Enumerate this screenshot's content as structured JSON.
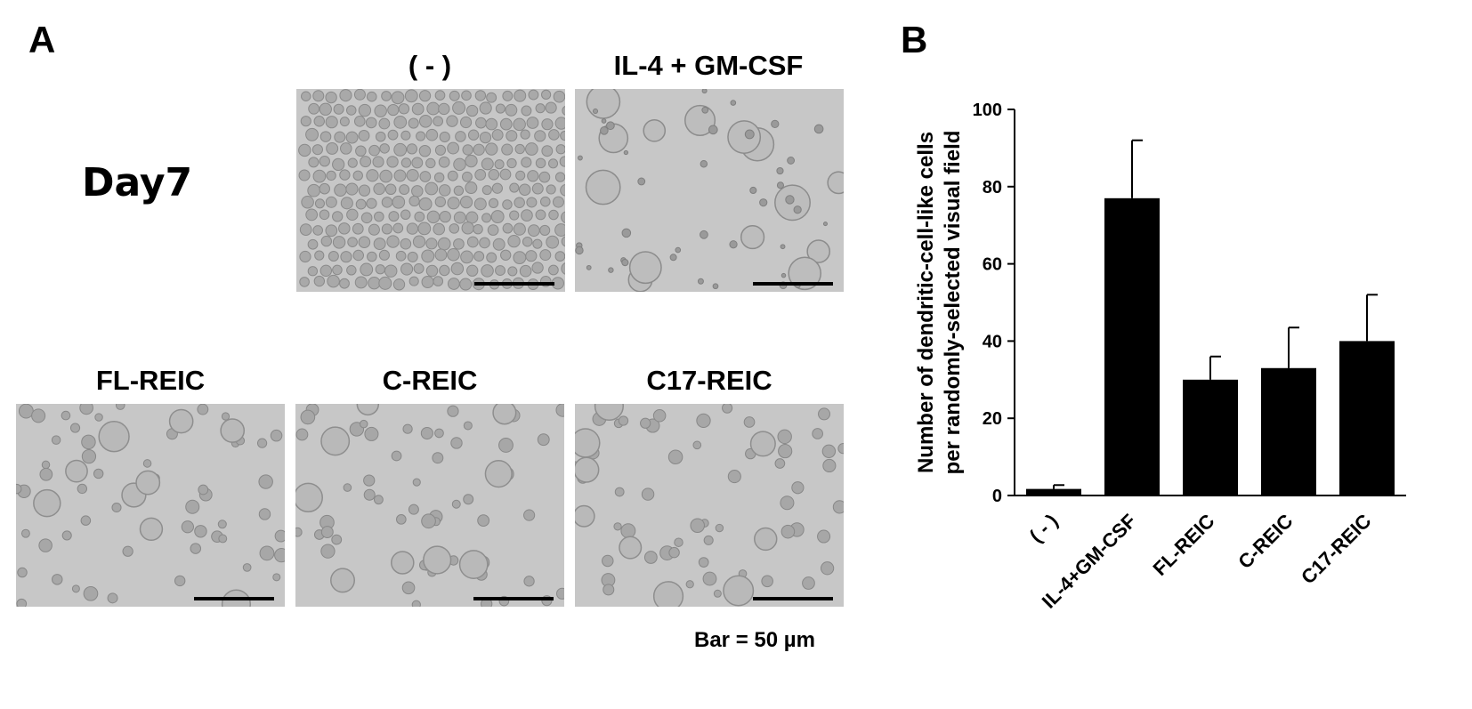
{
  "panel_a": {
    "letter": "A",
    "day_label": "Day7",
    "conditions": {
      "neg": "( - )",
      "il4": "IL-4 + GM-CSF",
      "fl": "FL-REIC",
      "c": "C-REIC",
      "c17": "C17-REIC"
    },
    "scale_note": "Bar = 50 µm"
  },
  "panel_b": {
    "letter": "B"
  },
  "chart_data": {
    "type": "bar",
    "categories": [
      "( - )",
      "IL-4+GM-CSF",
      "FL-REIC",
      "C-REIC",
      "C17-REIC"
    ],
    "values": [
      1.7,
      77,
      30,
      33,
      40
    ],
    "error_bars": [
      1,
      15,
      6,
      10.5,
      12
    ],
    "ylabel": "Number of dendritic-cell-like cells per randomly-selected visual field",
    "ylabel_lines": [
      "Number of dendritic-cell-like cells",
      "per randomly-selected visual field"
    ],
    "ylim": [
      0,
      100
    ],
    "yticks": [
      0,
      20,
      40,
      60,
      80,
      100
    ],
    "bar_color": "#000000",
    "grid": false,
    "legend": "none"
  }
}
